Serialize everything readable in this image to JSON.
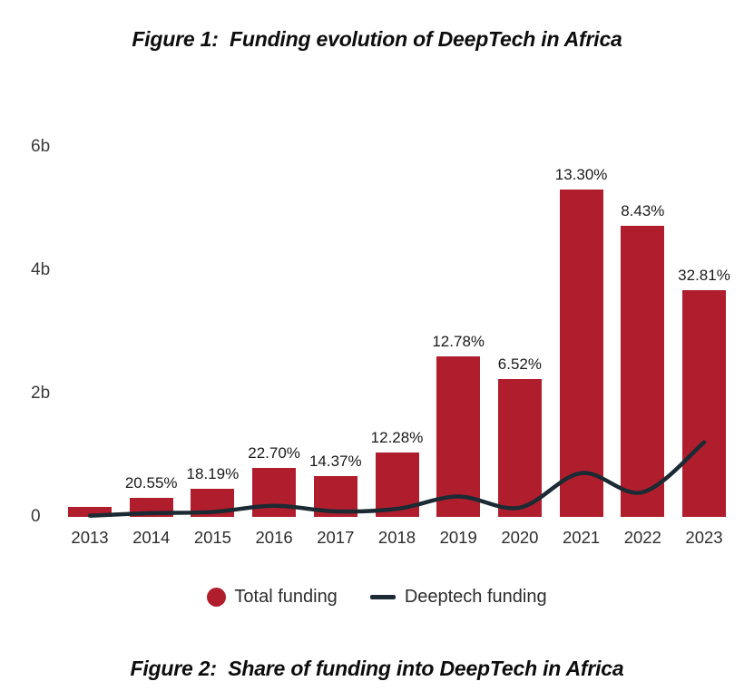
{
  "figure1_title": "Figure 1:  Funding evolution of DeepTech in Africa",
  "figure2_title": "Figure 2:  Share of funding into DeepTech in Africa",
  "legend": {
    "total": "Total funding",
    "deeptech": "Deeptech funding"
  },
  "colors": {
    "bar": "#B01E2D",
    "line": "#1B2A33",
    "title_text": "#0D0D0D",
    "axis_text": "#3A3A3A",
    "label_text": "#1A1A1A",
    "background": "#FFFFFF"
  },
  "chart_data": {
    "type": "bar",
    "title": "Figure 1: Funding evolution of DeepTech in Africa",
    "unit": "billions (b)",
    "categories": [
      "2013",
      "2014",
      "2015",
      "2016",
      "2017",
      "2018",
      "2019",
      "2020",
      "2021",
      "2022",
      "2023"
    ],
    "series": [
      {
        "name": "Total funding",
        "type": "bar",
        "values": [
          0.16,
          0.31,
          0.46,
          0.8,
          0.66,
          1.04,
          2.6,
          2.24,
          5.31,
          4.72,
          3.68
        ]
      },
      {
        "name": "Deeptech funding",
        "type": "line",
        "values": [
          0.02,
          0.06,
          0.08,
          0.18,
          0.09,
          0.13,
          0.33,
          0.15,
          0.71,
          0.4,
          1.21
        ]
      }
    ],
    "bar_labels": [
      "",
      "20.55%",
      "18.19%",
      "22.70%",
      "14.37%",
      "12.28%",
      "12.78%",
      "6.52%",
      "13.30%",
      "8.43%",
      "32.81%"
    ],
    "yticks": [
      {
        "value": 0,
        "label": "0"
      },
      {
        "value": 2,
        "label": "2b"
      },
      {
        "value": 4,
        "label": "4b"
      },
      {
        "value": 6,
        "label": "6b"
      }
    ],
    "xlabel": "",
    "ylabel": "",
    "ylim": [
      0,
      6.6
    ],
    "grid": false,
    "legend_position": "bottom"
  }
}
